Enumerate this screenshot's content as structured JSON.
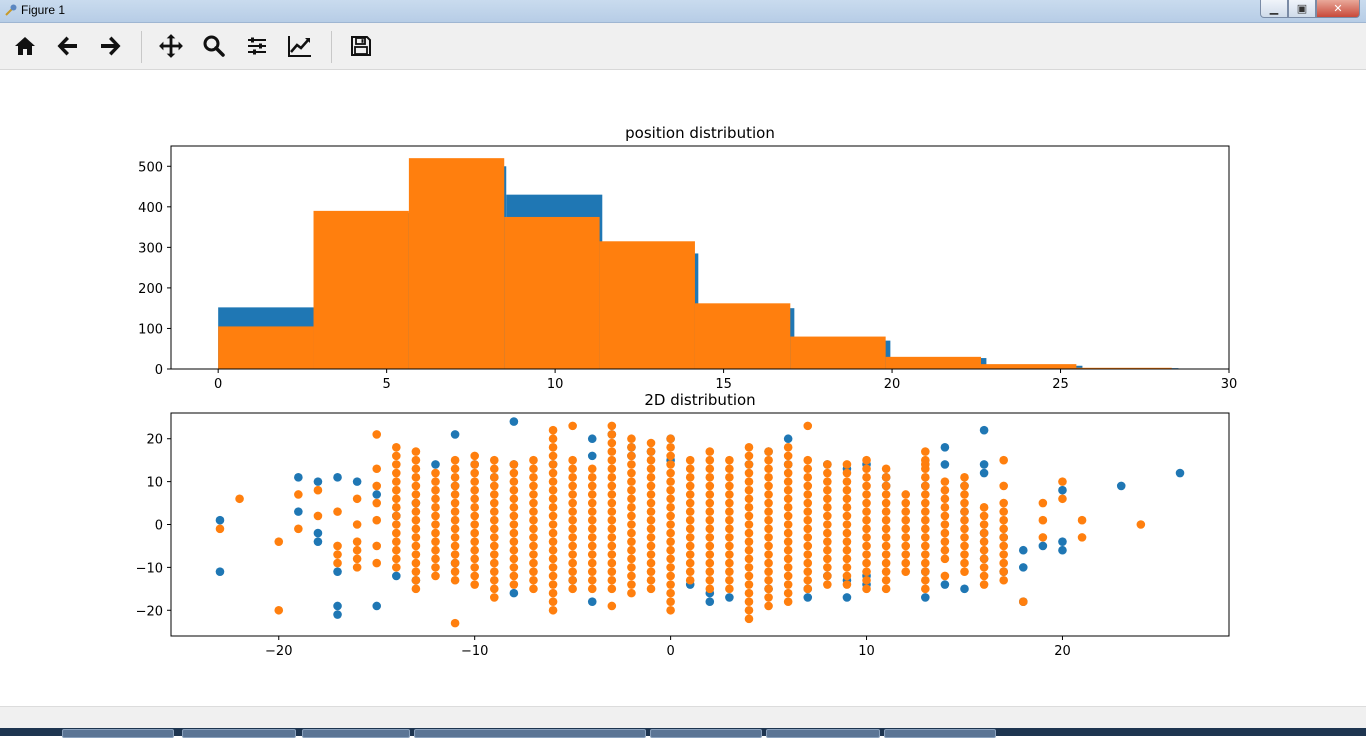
{
  "window": {
    "title": "Figure 1",
    "min_glyph": "▁",
    "max_glyph": "▣",
    "close_glyph": "✕"
  },
  "toolbar": {
    "buttons": [
      {
        "name": "home-button",
        "icon": "home-icon"
      },
      {
        "name": "back-button",
        "icon": "arrow-left-icon"
      },
      {
        "name": "forward-button",
        "icon": "arrow-right-icon"
      },
      {
        "name": "pan-button",
        "icon": "move-icon"
      },
      {
        "name": "zoom-button",
        "icon": "magnifier-icon"
      },
      {
        "name": "configure-subplots-button",
        "icon": "sliders-icon"
      },
      {
        "name": "edit-axis-button",
        "icon": "chart-line-icon"
      },
      {
        "name": "save-button",
        "icon": "floppy-disk-icon"
      }
    ]
  },
  "colors": {
    "blue": "#1f77b4",
    "orange": "#ff7f0e"
  },
  "chart_data": [
    {
      "type": "bar",
      "title": "position distribution",
      "xlim": [
        -1.4,
        30
      ],
      "ylim": [
        0,
        550
      ],
      "xticks": [
        0,
        5,
        10,
        15,
        20,
        25,
        30
      ],
      "yticks": [
        0,
        100,
        200,
        300,
        400,
        500
      ],
      "series": [
        {
          "color": "#1f77b4",
          "bins": [
            [
              0,
              2.85,
              152
            ],
            [
              2.85,
              5.7,
              385
            ],
            [
              5.7,
              8.55,
              500
            ],
            [
              8.55,
              11.4,
              430
            ],
            [
              11.4,
              14.25,
              285
            ],
            [
              14.25,
              17.1,
              150
            ],
            [
              17.1,
              19.95,
              70
            ],
            [
              19.95,
              22.8,
              27
            ],
            [
              22.8,
              25.65,
              8
            ],
            [
              25.65,
              28.5,
              2
            ]
          ]
        },
        {
          "color": "#ff7f0e",
          "bins": [
            [
              0,
              2.83,
              105
            ],
            [
              2.83,
              5.66,
              390
            ],
            [
              5.66,
              8.49,
              520
            ],
            [
              8.49,
              11.32,
              375
            ],
            [
              11.32,
              14.15,
              315
            ],
            [
              14.15,
              16.98,
              162
            ],
            [
              16.98,
              19.81,
              80
            ],
            [
              19.81,
              22.64,
              30
            ],
            [
              22.64,
              25.47,
              12
            ],
            [
              25.47,
              28.3,
              3
            ]
          ]
        }
      ]
    },
    {
      "type": "scatter",
      "title": "2D distribution",
      "xlim": [
        -25.5,
        28.5
      ],
      "ylim": [
        -26,
        26
      ],
      "xticks": [
        -20,
        -10,
        0,
        10,
        20
      ],
      "yticks": [
        -20,
        -10,
        0,
        10,
        20
      ],
      "series": [
        {
          "color": "#1f77b4",
          "points": [
            [
              -23,
              1
            ],
            [
              -23,
              -11
            ],
            [
              -19,
              11
            ],
            [
              -19,
              3
            ],
            [
              -18,
              10
            ],
            [
              -18,
              -2
            ],
            [
              -18,
              -4
            ],
            [
              -17,
              11
            ],
            [
              -17,
              -11
            ],
            [
              -17,
              -19
            ],
            [
              -17,
              -21
            ],
            [
              -16,
              10
            ],
            [
              -15,
              -19
            ],
            [
              -15,
              7
            ],
            [
              -14,
              2
            ],
            [
              -14,
              -12
            ],
            [
              -13,
              5
            ],
            [
              -13,
              -13
            ],
            [
              -12,
              14
            ],
            [
              -11,
              21
            ],
            [
              -11,
              9
            ],
            [
              -11,
              -9
            ],
            [
              -10,
              14
            ],
            [
              -9,
              11
            ],
            [
              -8,
              24
            ],
            [
              -8,
              14
            ],
            [
              -8,
              -16
            ],
            [
              -6,
              14
            ],
            [
              -5,
              -13
            ],
            [
              -4,
              20
            ],
            [
              -4,
              16
            ],
            [
              -4,
              -18
            ],
            [
              -3,
              21
            ],
            [
              -2,
              18
            ],
            [
              -2,
              16
            ],
            [
              -1,
              17
            ],
            [
              0,
              20
            ],
            [
              0,
              15
            ],
            [
              1,
              -14
            ],
            [
              2,
              -16
            ],
            [
              2,
              -18
            ],
            [
              3,
              -17
            ],
            [
              4,
              14
            ],
            [
              5,
              17
            ],
            [
              5,
              -15
            ],
            [
              6,
              20
            ],
            [
              6,
              14
            ],
            [
              7,
              -15
            ],
            [
              7,
              -17
            ],
            [
              8,
              14
            ],
            [
              8,
              -12
            ],
            [
              9,
              13
            ],
            [
              9,
              -13
            ],
            [
              9,
              -17
            ],
            [
              10,
              14
            ],
            [
              10,
              -12
            ],
            [
              10,
              -14
            ],
            [
              11,
              11
            ],
            [
              11,
              9
            ],
            [
              13,
              9
            ],
            [
              13,
              -11
            ],
            [
              13,
              -17
            ],
            [
              14,
              18
            ],
            [
              14,
              14
            ],
            [
              14,
              -14
            ],
            [
              15,
              9
            ],
            [
              15,
              3
            ],
            [
              15,
              -15
            ],
            [
              16,
              22
            ],
            [
              16,
              14
            ],
            [
              16,
              12
            ],
            [
              16,
              -2
            ],
            [
              16,
              -8
            ],
            [
              17,
              -3
            ],
            [
              17,
              -11
            ],
            [
              18,
              -6
            ],
            [
              18,
              -10
            ],
            [
              18,
              -18
            ],
            [
              19,
              -5
            ],
            [
              20,
              8
            ],
            [
              20,
              -4
            ],
            [
              20,
              -6
            ],
            [
              23,
              9
            ],
            [
              26,
              12
            ]
          ]
        },
        {
          "color": "#ff7f0e",
          "columns": [
            [
              -14,
              -10,
              18,
              2
            ],
            [
              -13,
              -15,
              17,
              2
            ],
            [
              -12,
              -12,
              13,
              2
            ],
            [
              -11,
              -13,
              15,
              2
            ],
            [
              -10,
              -14,
              16,
              2
            ],
            [
              -9,
              -17,
              15,
              2
            ],
            [
              -8,
              -14,
              14,
              2
            ],
            [
              -7,
              -15,
              15,
              2
            ],
            [
              -6,
              -18,
              22,
              2
            ],
            [
              -5,
              -15,
              15,
              2
            ],
            [
              -4,
              -15,
              14,
              2
            ],
            [
              -3,
              -15,
              21,
              2
            ],
            [
              -2,
              -16,
              20,
              2
            ],
            [
              -1,
              -15,
              19,
              2
            ],
            [
              0,
              -20,
              20,
              2
            ],
            [
              1,
              -13,
              15,
              2
            ],
            [
              2,
              -15,
              18,
              2
            ],
            [
              3,
              -15,
              15,
              2
            ],
            [
              4,
              -22,
              18,
              2
            ],
            [
              5,
              -19,
              17,
              2
            ],
            [
              6,
              -18,
              18,
              2
            ],
            [
              7,
              -15,
              15,
              2
            ],
            [
              8,
              -14,
              15,
              2
            ],
            [
              9,
              -14,
              15,
              2
            ],
            [
              10,
              -15,
              15,
              2
            ],
            [
              11,
              -15,
              13,
              2
            ],
            [
              12,
              -11,
              8,
              2
            ],
            [
              13,
              -15,
              17,
              2
            ],
            [
              14,
              -8,
              10,
              2
            ],
            [
              15,
              -11,
              11,
              2
            ],
            [
              16,
              -14,
              4,
              2
            ],
            [
              17,
              -13,
              3,
              2
            ]
          ],
          "points": [
            [
              -22,
              6
            ],
            [
              -23,
              -1
            ],
            [
              -20,
              -4
            ],
            [
              -20,
              -20
            ],
            [
              -19,
              7
            ],
            [
              -19,
              -1
            ],
            [
              -18,
              8
            ],
            [
              -18,
              2
            ],
            [
              -17,
              3
            ],
            [
              -17,
              -5
            ],
            [
              -17,
              -7
            ],
            [
              -17,
              -9
            ],
            [
              -16,
              6
            ],
            [
              -16,
              0
            ],
            [
              -16,
              -4
            ],
            [
              -16,
              -6
            ],
            [
              -16,
              -8
            ],
            [
              -16,
              -10
            ],
            [
              -15,
              21
            ],
            [
              -15,
              13
            ],
            [
              -15,
              9
            ],
            [
              -15,
              5
            ],
            [
              -15,
              1
            ],
            [
              -15,
              -5
            ],
            [
              -15,
              -9
            ],
            [
              -11,
              -23
            ],
            [
              -6,
              -20
            ],
            [
              -5,
              23
            ],
            [
              -3,
              23
            ],
            [
              -3,
              -19
            ],
            [
              7,
              23
            ],
            [
              13,
              14
            ],
            [
              14,
              -12
            ],
            [
              17,
              15
            ],
            [
              17,
              9
            ],
            [
              17,
              5
            ],
            [
              18,
              -18
            ],
            [
              19,
              5
            ],
            [
              19,
              1
            ],
            [
              19,
              -3
            ],
            [
              20,
              10
            ],
            [
              20,
              6
            ],
            [
              21,
              1
            ],
            [
              21,
              -3
            ],
            [
              24,
              0
            ]
          ]
        }
      ]
    }
  ]
}
